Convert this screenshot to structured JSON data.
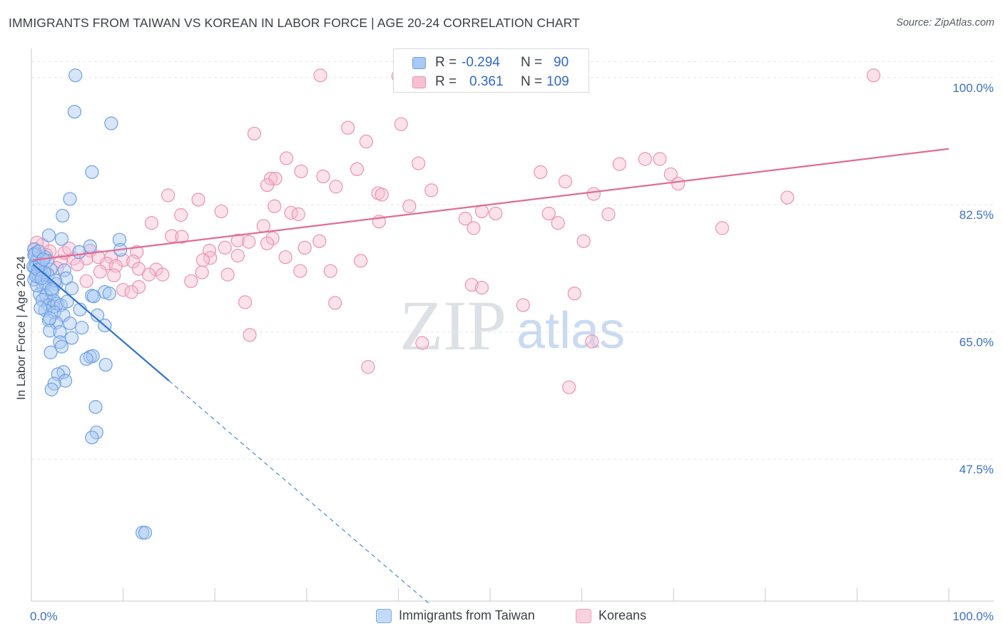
{
  "title": "IMMIGRANTS FROM TAIWAN VS KOREAN IN LABOR FORCE | AGE 20-24 CORRELATION CHART",
  "source": "Source: ZipAtlas.com",
  "watermark": {
    "zip": "ZIP",
    "atlas": "atlas"
  },
  "colors": {
    "blue_fill": "#a9c8f3",
    "blue_stroke": "#6d9fe3",
    "blue_line": "#2f72d4",
    "pink_fill": "#f7bfd2",
    "pink_stroke": "#ec92b2",
    "pink_line": "#e06c95",
    "axis_label": "#3d6fc5",
    "grid": "#e3e6ea"
  },
  "legend": {
    "taiwan": {
      "r_label": "R =",
      "r_value": "-0.294",
      "n_label": "N =",
      "n_value": "90"
    },
    "korean": {
      "r_label": "R =",
      "r_value": "0.361",
      "n_label": "N =",
      "n_value": "109"
    }
  },
  "bottom_legend": {
    "taiwan": "Immigrants from Taiwan",
    "korean": "Koreans"
  },
  "chart_data": {
    "type": "scatter",
    "title": "IMMIGRANTS FROM TAIWAN VS KOREAN IN LABOR FORCE | AGE 20-24 CORRELATION CHART",
    "xlabel": "",
    "ylabel": "In Labor Force | Age 20-24",
    "xlim": [
      0,
      100
    ],
    "ylim": [
      28.0,
      104.0
    ],
    "x_tick_labels": [
      {
        "value": 0,
        "label": "0.0%"
      },
      {
        "value": 100,
        "label": "100.0%"
      }
    ],
    "y_tick_labels": [
      {
        "value": 47.5,
        "label": "47.5%"
      },
      {
        "value": 65.0,
        "label": "65.0%"
      },
      {
        "value": 82.5,
        "label": "82.5%"
      },
      {
        "value": 100.0,
        "label": "100.0%"
      }
    ],
    "grid": true,
    "series": [
      {
        "name": "Immigrants from Taiwan",
        "r": -0.294,
        "n": 90,
        "trend": {
          "solid": [
            [
              0.2,
              74.3
            ],
            [
              15.0,
              58.3
            ]
          ],
          "dashed": [
            [
              15.0,
              58.3
            ],
            [
              43.5,
              27.5
            ]
          ]
        },
        "points": [
          [
            4.8,
            100.3
          ],
          [
            4.7,
            95.3
          ],
          [
            8.7,
            93.7
          ],
          [
            6.6,
            87.0
          ],
          [
            4.2,
            83.3
          ],
          [
            3.4,
            81.0
          ],
          [
            1.9,
            78.3
          ],
          [
            3.3,
            77.8
          ],
          [
            9.6,
            77.7
          ],
          [
            6.4,
            76.8
          ],
          [
            0.3,
            76.4
          ],
          [
            0.4,
            75.8
          ],
          [
            9.7,
            76.3
          ],
          [
            5.2,
            76.0
          ],
          [
            0.7,
            75.1
          ],
          [
            1.5,
            75.3
          ],
          [
            0.5,
            74.6
          ],
          [
            0.2,
            74.0
          ],
          [
            0.4,
            73.9
          ],
          [
            1.1,
            73.7
          ],
          [
            2.1,
            73.6
          ],
          [
            3.6,
            73.5
          ],
          [
            0.6,
            73.0
          ],
          [
            1.2,
            72.8
          ],
          [
            0.8,
            72.5
          ],
          [
            1.8,
            72.9
          ],
          [
            3.8,
            72.4
          ],
          [
            0.3,
            72.2
          ],
          [
            1.5,
            71.8
          ],
          [
            2.7,
            71.6
          ],
          [
            1.3,
            71.2
          ],
          [
            2.3,
            70.7
          ],
          [
            4.4,
            71.0
          ],
          [
            8.0,
            70.5
          ],
          [
            8.5,
            70.3
          ],
          [
            0.9,
            70.2
          ],
          [
            1.6,
            70.0
          ],
          [
            6.6,
            70.0
          ],
          [
            6.8,
            69.9
          ],
          [
            2.4,
            69.4
          ],
          [
            1.2,
            69.4
          ],
          [
            1.9,
            68.7
          ],
          [
            2.4,
            68.5
          ],
          [
            2.8,
            68.9
          ],
          [
            3.2,
            68.7
          ],
          [
            1.5,
            68.0
          ],
          [
            2.5,
            67.7
          ],
          [
            5.3,
            68.1
          ],
          [
            3.5,
            67.3
          ],
          [
            7.2,
            67.3
          ],
          [
            1.9,
            66.6
          ],
          [
            2.7,
            66.3
          ],
          [
            4.2,
            66.2
          ],
          [
            8.0,
            65.9
          ],
          [
            5.5,
            65.6
          ],
          [
            2.0,
            65.2
          ],
          [
            3.1,
            65.0
          ],
          [
            4.4,
            64.2
          ],
          [
            3.1,
            63.6
          ],
          [
            3.3,
            63.0
          ],
          [
            2.1,
            62.2
          ],
          [
            6.4,
            61.6
          ],
          [
            6.7,
            61.7
          ],
          [
            6.0,
            61.3
          ],
          [
            8.1,
            60.5
          ],
          [
            3.5,
            59.5
          ],
          [
            2.9,
            59.2
          ],
          [
            3.7,
            58.3
          ],
          [
            2.5,
            57.9
          ],
          [
            2.2,
            57.1
          ],
          [
            7.0,
            54.7
          ],
          [
            7.1,
            51.2
          ],
          [
            6.6,
            50.5
          ],
          [
            12.1,
            37.4
          ],
          [
            12.4,
            37.4
          ],
          [
            0.9,
            74.3
          ],
          [
            1.4,
            73.2
          ],
          [
            2.6,
            72.1
          ],
          [
            0.6,
            71.4
          ],
          [
            1.0,
            68.3
          ],
          [
            0.3,
            75.6
          ],
          [
            0.8,
            76.1
          ],
          [
            1.7,
            74.8
          ],
          [
            0.5,
            72.7
          ],
          [
            2.2,
            70.9
          ],
          [
            3.9,
            69.2
          ],
          [
            0.7,
            73.6
          ],
          [
            1.3,
            75.0
          ],
          [
            2.0,
            66.9
          ],
          [
            1.1,
            72.4
          ]
        ]
      },
      {
        "name": "Koreans",
        "r": 0.361,
        "n": 109,
        "trend": {
          "solid": [
            [
              0.2,
              74.9
            ],
            [
              100,
              90.2
            ]
          ]
        },
        "points": [
          [
            31.5,
            100.3
          ],
          [
            40.0,
            100.2
          ],
          [
            91.8,
            100.3
          ],
          [
            40.3,
            93.6
          ],
          [
            34.5,
            93.1
          ],
          [
            24.3,
            92.3
          ],
          [
            36.5,
            91.2
          ],
          [
            27.8,
            88.9
          ],
          [
            42.2,
            88.2
          ],
          [
            64.1,
            88.1
          ],
          [
            66.9,
            88.8
          ],
          [
            68.5,
            88.8
          ],
          [
            29.4,
            87.1
          ],
          [
            35.5,
            87.4
          ],
          [
            55.5,
            87.0
          ],
          [
            31.8,
            86.4
          ],
          [
            26.1,
            86.1
          ],
          [
            26.6,
            86.1
          ],
          [
            58.2,
            85.7
          ],
          [
            69.7,
            86.7
          ],
          [
            70.5,
            85.4
          ],
          [
            25.7,
            85.2
          ],
          [
            33.2,
            85.0
          ],
          [
            37.8,
            84.1
          ],
          [
            43.6,
            84.5
          ],
          [
            61.3,
            84.0
          ],
          [
            14.9,
            83.8
          ],
          [
            18.2,
            83.2
          ],
          [
            38.2,
            83.9
          ],
          [
            82.4,
            83.5
          ],
          [
            26.5,
            82.3
          ],
          [
            41.2,
            82.3
          ],
          [
            20.7,
            81.6
          ],
          [
            28.3,
            81.4
          ],
          [
            29.1,
            81.2
          ],
          [
            49.1,
            81.6
          ],
          [
            50.6,
            81.3
          ],
          [
            56.4,
            81.3
          ],
          [
            62.9,
            81.2
          ],
          [
            16.3,
            81.1
          ],
          [
            47.3,
            80.6
          ],
          [
            37.9,
            80.2
          ],
          [
            13.1,
            80.0
          ],
          [
            57.4,
            80.0
          ],
          [
            25.3,
            79.6
          ],
          [
            48.2,
            79.3
          ],
          [
            75.3,
            79.3
          ],
          [
            15.3,
            78.2
          ],
          [
            16.4,
            78.1
          ],
          [
            22.5,
            77.6
          ],
          [
            26.3,
            77.9
          ],
          [
            23.7,
            77.4
          ],
          [
            31.4,
            77.5
          ],
          [
            25.7,
            77.2
          ],
          [
            60.2,
            77.5
          ],
          [
            19.4,
            76.2
          ],
          [
            29.8,
            76.6
          ],
          [
            11.5,
            76.0
          ],
          [
            21.1,
            76.6
          ],
          [
            22.5,
            75.5
          ],
          [
            27.7,
            75.3
          ],
          [
            6.4,
            76.2
          ],
          [
            6.0,
            75.1
          ],
          [
            7.3,
            75.3
          ],
          [
            4.6,
            75.1
          ],
          [
            8.7,
            75.3
          ],
          [
            19.5,
            75.2
          ],
          [
            18.7,
            74.9
          ],
          [
            10.0,
            74.9
          ],
          [
            11.1,
            74.7
          ],
          [
            3.2,
            74.7
          ],
          [
            8.2,
            74.4
          ],
          [
            35.9,
            74.8
          ],
          [
            9.2,
            74.1
          ],
          [
            11.7,
            73.7
          ],
          [
            13.6,
            73.6
          ],
          [
            7.5,
            73.3
          ],
          [
            18.6,
            73.2
          ],
          [
            29.3,
            73.4
          ],
          [
            32.6,
            73.4
          ],
          [
            21.4,
            72.9
          ],
          [
            9.0,
            72.8
          ],
          [
            12.8,
            72.9
          ],
          [
            14.3,
            72.9
          ],
          [
            6.0,
            72.0
          ],
          [
            17.4,
            72.0
          ],
          [
            11.7,
            71.2
          ],
          [
            48.0,
            71.5
          ],
          [
            49.1,
            71.1
          ],
          [
            10.0,
            70.8
          ],
          [
            10.9,
            70.5
          ],
          [
            59.2,
            70.3
          ],
          [
            23.3,
            69.1
          ],
          [
            33.1,
            69.0
          ],
          [
            53.6,
            68.7
          ],
          [
            23.8,
            64.6
          ],
          [
            42.6,
            63.5
          ],
          [
            61.1,
            63.7
          ],
          [
            36.7,
            60.2
          ],
          [
            58.6,
            57.4
          ],
          [
            1.2,
            77.0
          ],
          [
            2.0,
            76.1
          ],
          [
            0.6,
            77.3
          ],
          [
            3.6,
            75.9
          ],
          [
            5.0,
            74.3
          ],
          [
            4.1,
            76.5
          ],
          [
            0.3,
            76.3
          ],
          [
            2.8,
            73.8
          ],
          [
            1.6,
            75.6
          ]
        ]
      }
    ]
  }
}
